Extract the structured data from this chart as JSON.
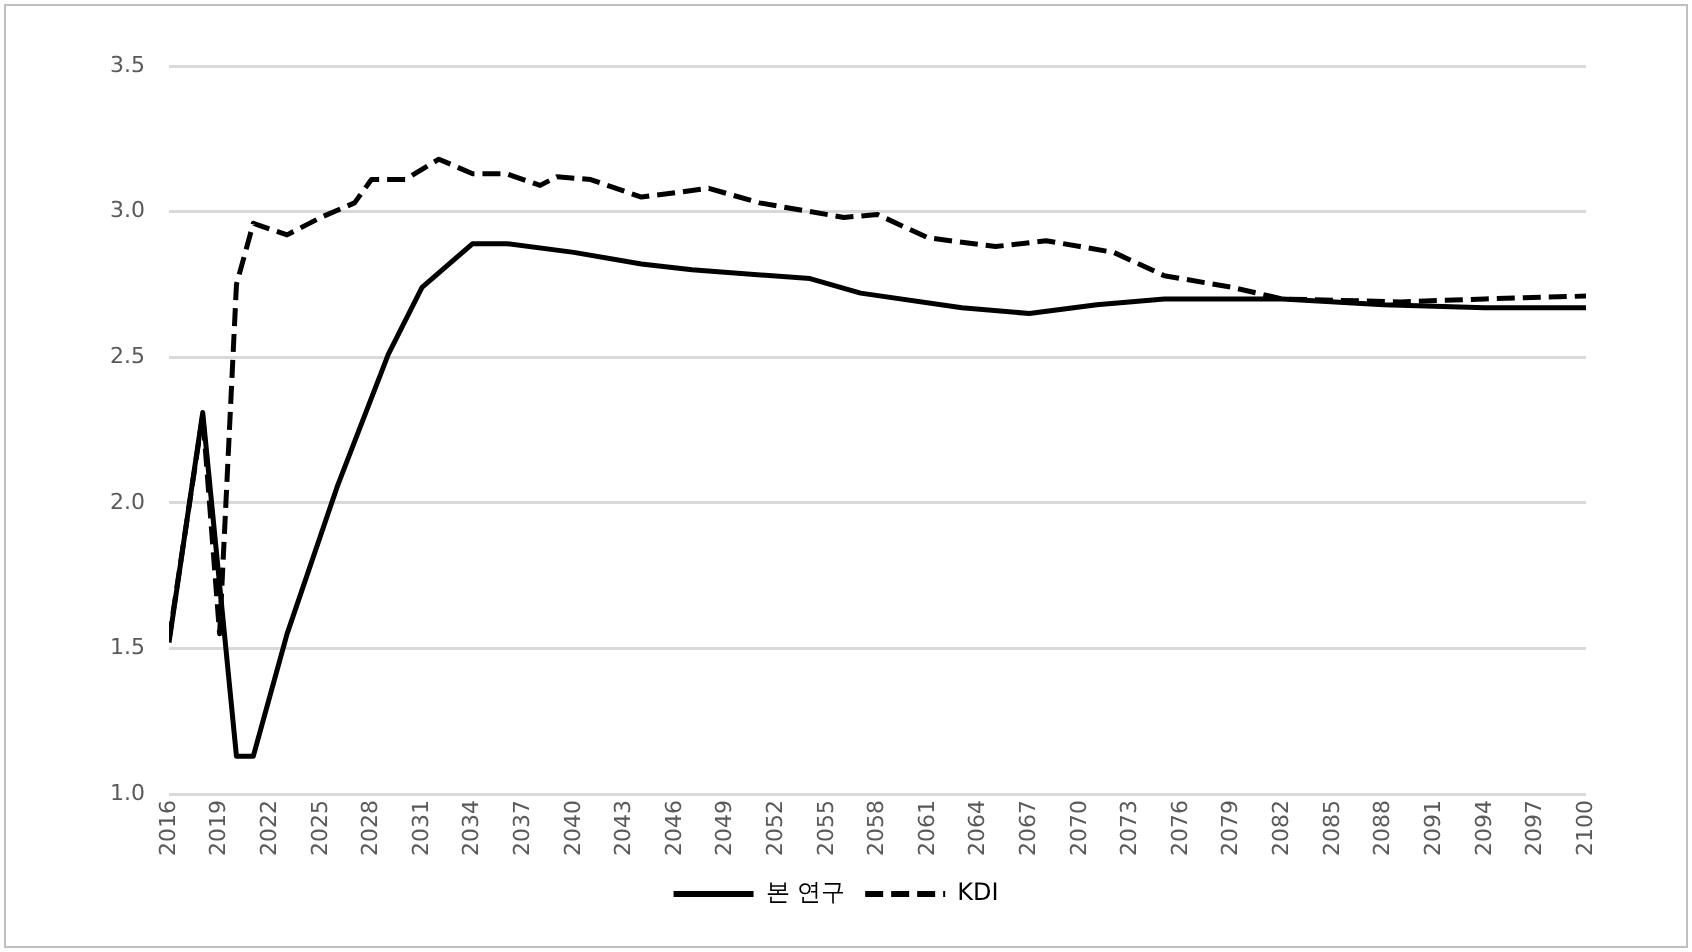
{
  "chart_data": {
    "type": "line",
    "xlim": [
      2016,
      2100
    ],
    "xticks": [
      2016,
      2019,
      2022,
      2025,
      2028,
      2031,
      2034,
      2037,
      2040,
      2043,
      2046,
      2049,
      2052,
      2055,
      2058,
      2061,
      2064,
      2067,
      2070,
      2073,
      2076,
      2079,
      2082,
      2085,
      2088,
      2091,
      2094,
      2097,
      2100
    ],
    "ylim": [
      1.0,
      3.5
    ],
    "yticks": [
      {
        "value": 1.0,
        "label": "1.0"
      },
      {
        "value": 1.5,
        "label": "1.5"
      },
      {
        "value": 2.0,
        "label": "2.0"
      },
      {
        "value": 2.5,
        "label": "2.5"
      },
      {
        "value": 3.0,
        "label": "3.0"
      },
      {
        "value": 3.5,
        "label": "3.5"
      }
    ],
    "grid": "y",
    "legend": "bottom",
    "marker": "none",
    "series": [
      {
        "name": "본 연구",
        "color": "#000000",
        "line_style": "solid",
        "x": [
          2016,
          2018,
          2020,
          2021,
          2023,
          2026,
          2029,
          2031,
          2034,
          2036,
          2040,
          2044,
          2047,
          2054,
          2057,
          2063,
          2067,
          2071,
          2075,
          2082,
          2088,
          2094,
          2100
        ],
        "values": [
          1.52,
          2.31,
          1.13,
          1.13,
          1.55,
          2.06,
          2.51,
          2.74,
          2.89,
          2.89,
          2.86,
          2.82,
          2.8,
          2.77,
          2.72,
          2.67,
          2.65,
          2.68,
          2.7,
          2.7,
          2.68,
          2.67,
          2.67
        ]
      },
      {
        "name": "KDI",
        "color": "#000000",
        "line_style": "dashed",
        "x": [
          2016,
          2018,
          2019,
          2020,
          2021,
          2023,
          2025,
          2027,
          2028,
          2030,
          2032,
          2034,
          2036,
          2038,
          2039,
          2041,
          2044,
          2048,
          2051,
          2056,
          2058,
          2061,
          2065,
          2068,
          2070,
          2072,
          2075,
          2076,
          2079,
          2082,
          2089,
          2094,
          2100
        ],
        "values": [
          1.53,
          2.3,
          1.55,
          2.75,
          2.96,
          2.92,
          2.98,
          3.03,
          3.11,
          3.11,
          3.18,
          3.13,
          3.13,
          3.09,
          3.12,
          3.11,
          3.05,
          3.08,
          3.03,
          2.98,
          2.99,
          2.91,
          2.88,
          2.9,
          2.88,
          2.86,
          2.78,
          2.77,
          2.74,
          2.7,
          2.69,
          2.7,
          2.71
        ]
      }
    ]
  }
}
